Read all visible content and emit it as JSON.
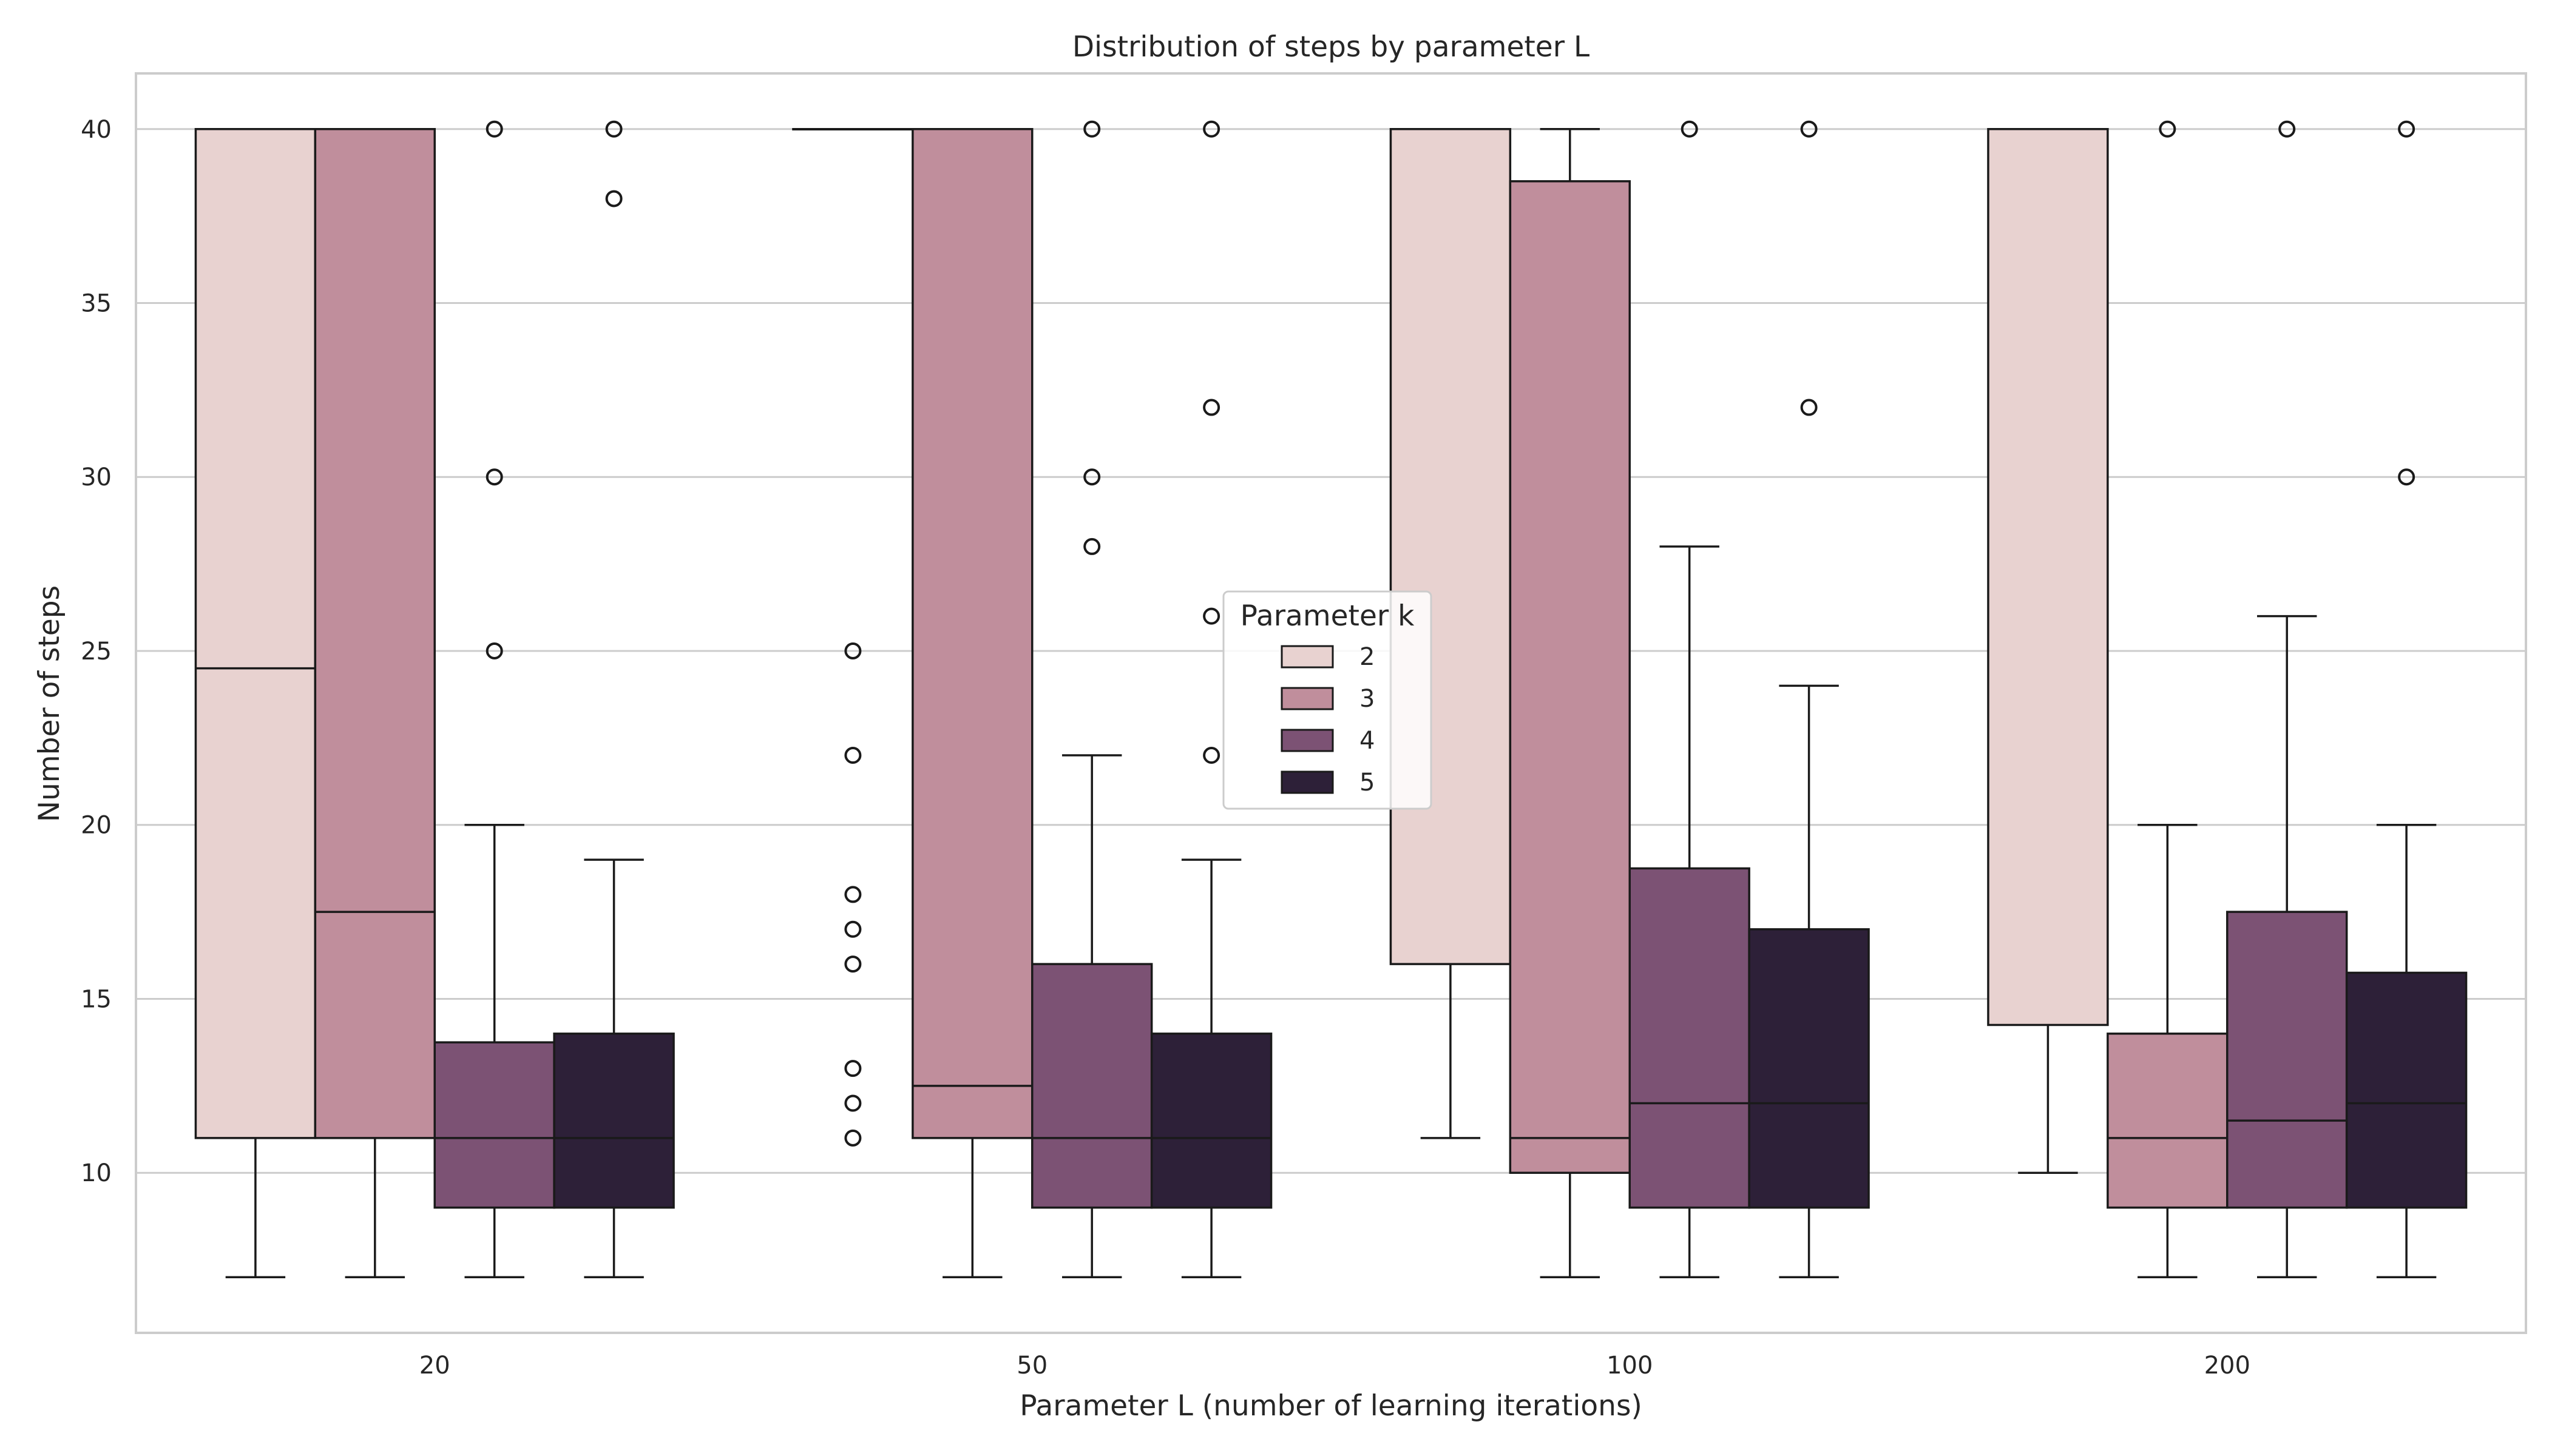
{
  "chart_data": {
    "type": "box",
    "title": "Distribution of steps by parameter L",
    "xlabel": "Parameter L (number of learning iterations)",
    "ylabel": "Number of steps",
    "categories": [
      "20",
      "50",
      "100",
      "200"
    ],
    "ylim": [
      5.4,
      41.6
    ],
    "yticks": [
      10,
      15,
      20,
      25,
      30,
      35,
      40
    ],
    "grid": "horizontal",
    "legend": {
      "title": "Parameter k",
      "position": "center"
    },
    "series": [
      {
        "name": "2",
        "color": "#e8d2d0",
        "boxes": [
          {
            "q1": 11,
            "median": 24.5,
            "q3": 40,
            "whisker_low": 7,
            "whisker_high": 40,
            "outliers": []
          },
          {
            "q1": 40,
            "median": 40,
            "q3": 40,
            "whisker_low": 40,
            "whisker_high": 40,
            "outliers": [
              25,
              22,
              18,
              17,
              16,
              13,
              12,
              11
            ]
          },
          {
            "q1": 16,
            "median": 40,
            "q3": 40,
            "whisker_low": 11,
            "whisker_high": 40,
            "outliers": []
          },
          {
            "q1": 14.25,
            "median": 40,
            "q3": 40,
            "whisker_low": 10,
            "whisker_high": 40,
            "outliers": []
          }
        ]
      },
      {
        "name": "3",
        "color": "#c08e9c",
        "boxes": [
          {
            "q1": 11,
            "median": 17.5,
            "q3": 40,
            "whisker_low": 7,
            "whisker_high": 40,
            "outliers": []
          },
          {
            "q1": 11,
            "median": 12.5,
            "q3": 40,
            "whisker_low": 7,
            "whisker_high": 40,
            "outliers": []
          },
          {
            "q1": 10,
            "median": 11,
            "q3": 38.5,
            "whisker_low": 7,
            "whisker_high": 40,
            "outliers": []
          },
          {
            "q1": 9,
            "median": 11,
            "q3": 14,
            "whisker_low": 7,
            "whisker_high": 20,
            "outliers": [
              40
            ]
          }
        ]
      },
      {
        "name": "4",
        "color": "#7c5274",
        "boxes": [
          {
            "q1": 9,
            "median": 11,
            "q3": 13.75,
            "whisker_low": 7,
            "whisker_high": 20,
            "outliers": [
              25,
              30,
              40
            ]
          },
          {
            "q1": 9,
            "median": 11,
            "q3": 16,
            "whisker_low": 7,
            "whisker_high": 22,
            "outliers": [
              28,
              30,
              40
            ]
          },
          {
            "q1": 9,
            "median": 12,
            "q3": 18.75,
            "whisker_low": 7,
            "whisker_high": 28,
            "outliers": [
              40
            ]
          },
          {
            "q1": 9,
            "median": 11.5,
            "q3": 17.5,
            "whisker_low": 7,
            "whisker_high": 26,
            "outliers": [
              40
            ]
          }
        ]
      },
      {
        "name": "5",
        "color": "#2d2038",
        "boxes": [
          {
            "q1": 9,
            "median": 11,
            "q3": 14,
            "whisker_low": 7,
            "whisker_high": 19,
            "outliers": [
              38,
              40
            ]
          },
          {
            "q1": 9,
            "median": 11,
            "q3": 14,
            "whisker_low": 7,
            "whisker_high": 19,
            "outliers": [
              22,
              26,
              32,
              40
            ]
          },
          {
            "q1": 9,
            "median": 12,
            "q3": 17,
            "whisker_low": 7,
            "whisker_high": 24,
            "outliers": [
              32,
              40
            ]
          },
          {
            "q1": 9,
            "median": 12,
            "q3": 15.75,
            "whisker_low": 7,
            "whisker_high": 20,
            "outliers": [
              30,
              40
            ]
          }
        ]
      }
    ]
  }
}
